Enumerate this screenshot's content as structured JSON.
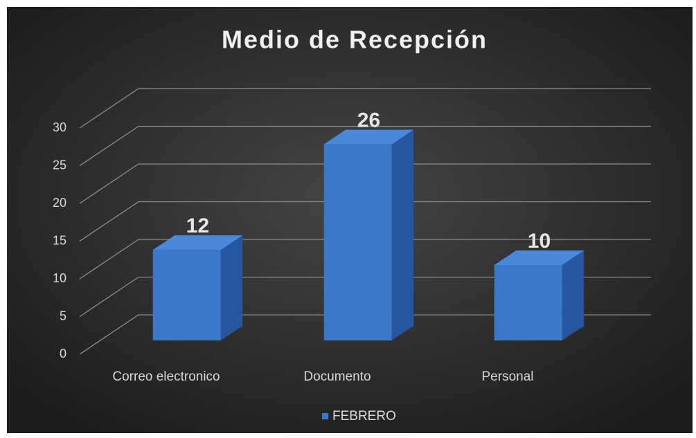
{
  "chart_data": {
    "type": "bar3d",
    "title": "Medio de Recepción",
    "categories": [
      "Correo electronico",
      "Documento",
      "Personal"
    ],
    "series": [
      {
        "name": "FEBRERO",
        "color": "#3a78cc",
        "values": [
          12,
          26,
          10
        ]
      }
    ],
    "ylim": [
      0,
      30
    ],
    "yticks": [
      0,
      5,
      10,
      15,
      20,
      25,
      30
    ],
    "grid": true,
    "legend": "bottom"
  }
}
